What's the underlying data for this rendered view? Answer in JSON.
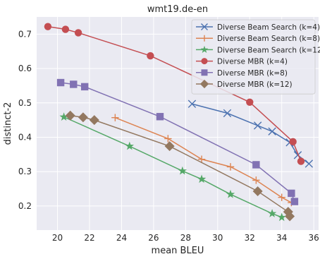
{
  "chart_data": {
    "type": "line",
    "title": "wmt19.de-en",
    "xlabel": "mean BLEU",
    "ylabel": "distinct-2",
    "xlim": [
      18.7,
      36.3
    ],
    "ylim": [
      0.13,
      0.75
    ],
    "xticks": [
      20,
      22,
      24,
      26,
      28,
      30,
      32,
      34,
      36
    ],
    "yticks": [
      0.2,
      0.3,
      0.4,
      0.5,
      0.6,
      0.7
    ],
    "grid": true,
    "legend_position": "top-right",
    "background": "#eaeaf2",
    "series": [
      {
        "name": "Diverse Beam Search (k=4)",
        "color": "#4c72b0",
        "marker": "x",
        "points": [
          [
            28.4,
            0.497
          ],
          [
            30.6,
            0.47
          ],
          [
            32.5,
            0.434
          ],
          [
            33.4,
            0.417
          ],
          [
            34.5,
            0.385
          ],
          [
            35.0,
            0.348
          ],
          [
            35.7,
            0.323
          ]
        ]
      },
      {
        "name": "Diverse Beam Search (k=8)",
        "color": "#dd8452",
        "marker": "plus",
        "points": [
          [
            23.6,
            0.457
          ],
          [
            26.9,
            0.396
          ],
          [
            29.0,
            0.336
          ],
          [
            30.8,
            0.314
          ],
          [
            32.4,
            0.275
          ],
          [
            34.0,
            0.225
          ],
          [
            34.6,
            0.21
          ]
        ]
      },
      {
        "name": "Diverse Beam Search (k=12)",
        "color": "#55a868",
        "marker": "star",
        "points": [
          [
            20.4,
            0.459
          ],
          [
            24.5,
            0.374
          ],
          [
            27.8,
            0.302
          ],
          [
            29.0,
            0.278
          ],
          [
            30.8,
            0.234
          ],
          [
            33.4,
            0.178
          ],
          [
            34.0,
            0.167
          ]
        ]
      },
      {
        "name": "Diverse MBR (k=4)",
        "color": "#c44e52",
        "marker": "circle",
        "points": [
          [
            19.4,
            0.722
          ],
          [
            20.5,
            0.714
          ],
          [
            21.3,
            0.704
          ],
          [
            25.8,
            0.637
          ],
          [
            32.0,
            0.502
          ],
          [
            34.7,
            0.387
          ],
          [
            35.2,
            0.33
          ]
        ]
      },
      {
        "name": "Diverse MBR (k=8)",
        "color": "#8172b3",
        "marker": "square",
        "points": [
          [
            20.2,
            0.559
          ],
          [
            21.0,
            0.554
          ],
          [
            21.7,
            0.547
          ],
          [
            26.4,
            0.46
          ],
          [
            32.4,
            0.32
          ],
          [
            34.6,
            0.237
          ],
          [
            34.8,
            0.213
          ]
        ]
      },
      {
        "name": "Diverse MBR (k=12)",
        "color": "#937860",
        "marker": "diamond",
        "points": [
          [
            20.8,
            0.463
          ],
          [
            21.6,
            0.458
          ],
          [
            22.3,
            0.45
          ],
          [
            27.0,
            0.374
          ],
          [
            32.5,
            0.243
          ],
          [
            34.4,
            0.183
          ],
          [
            34.5,
            0.17
          ]
        ]
      }
    ]
  }
}
